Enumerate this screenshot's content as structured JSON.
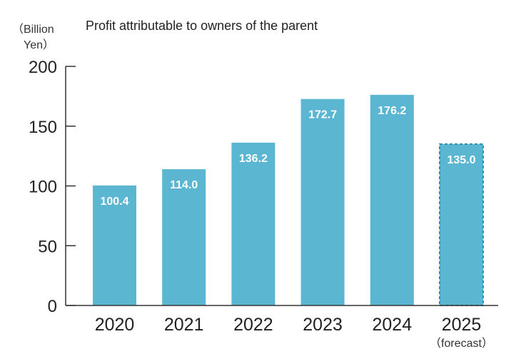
{
  "chart_data": {
    "type": "bar",
    "title": "Profit attributable to owners of the parent",
    "ylabel_line1": "（Billion",
    "ylabel_line2": "Yen）",
    "categories": [
      "2020",
      "2021",
      "2022",
      "2023",
      "2024",
      "2025"
    ],
    "category_notes": [
      "",
      "",
      "",
      "",
      "",
      "（forecast）"
    ],
    "values": [
      100.4,
      114.0,
      136.2,
      172.7,
      176.2,
      135.0
    ],
    "value_labels": [
      "100.4",
      "114.0",
      "136.2",
      "172.7",
      "176.2",
      "135.0"
    ],
    "forecast": [
      false,
      false,
      false,
      false,
      false,
      true
    ],
    "ylim": [
      0,
      200
    ],
    "yticks": [
      0,
      50,
      100,
      150,
      200
    ],
    "ytick_labels": [
      "0",
      "50",
      "100",
      "150",
      "200"
    ],
    "bar_color": "#5ab6d1",
    "forecast_border_color": "#2e8fb0",
    "grid": false,
    "legend": "none"
  }
}
